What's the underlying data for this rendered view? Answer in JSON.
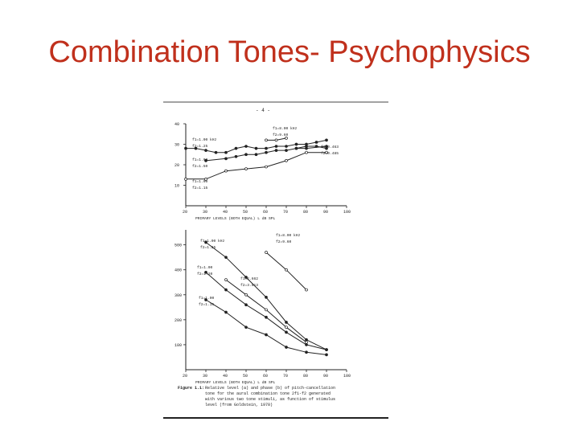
{
  "title": "Combination Tones- Psychophysics",
  "figure": {
    "page_marker": "- 4 -",
    "caption_label": "Figure 1.1:",
    "caption_lines": [
      "Relative level (a) and phase (b) of pitch-cancellation",
      "tone for the aural combination tone 2f1-f2 generated",
      "with various two tone stimuli, as function of stimulus",
      "level (from Goldstein, 1970)"
    ]
  },
  "chart_data": [
    {
      "type": "line",
      "panel": "a",
      "xlabel": "PRIMARY LEVELS (BOTH EQUAL) L dB SPL",
      "x_ticks": [
        20,
        30,
        40,
        50,
        60,
        70,
        80,
        90,
        100
      ],
      "y_ticks": [
        10,
        20,
        30,
        40
      ],
      "xlim": [
        20,
        100
      ],
      "ylim": [
        0,
        40
      ],
      "series": [
        {
          "name": "f1=1.00 kHz f2=1.25",
          "x": [
            20,
            25,
            30,
            35,
            40,
            45,
            50,
            55,
            60,
            65,
            70,
            75,
            80,
            85,
            90
          ],
          "y": [
            28,
            28,
            27,
            26,
            26,
            28,
            29,
            28,
            28,
            29,
            29,
            30,
            30,
            31,
            32
          ]
        },
        {
          "name": "f1=8.00 kHz f2=9.60",
          "x": [
            60,
            65,
            70
          ],
          "y": [
            32,
            32,
            33
          ]
        },
        {
          "name": "f1=1.00 f2=1.50",
          "x": [
            30,
            40,
            45,
            50,
            55,
            60,
            65,
            70,
            75,
            80,
            90
          ],
          "y": [
            22,
            23,
            24,
            25,
            25,
            26,
            27,
            27,
            28,
            28,
            29
          ]
        },
        {
          "name": "f1=1.00 f2=1.15",
          "x": [
            20,
            30,
            40,
            50,
            60,
            70,
            80,
            90
          ],
          "y": [
            13,
            13,
            17,
            18,
            19,
            22,
            26,
            26
          ]
        },
        {
          "name": "f1=0.463 f2=0.485",
          "x": [
            75,
            80,
            85,
            90
          ],
          "y": [
            28,
            29,
            29,
            28
          ]
        }
      ],
      "legend_labels": [
        "f1=1.00 kHz",
        "f2=1.25",
        "f1=1.00",
        "f2=1.50",
        "f1=1.00",
        "f2=1.15",
        "f1=8.00 kHz",
        "f2=9.60",
        "f1=0.463",
        "f2=0.485"
      ]
    },
    {
      "type": "line",
      "panel": "b",
      "xlabel": "PRIMARY LEVELS (BOTH EQUAL) L dB SPL",
      "x_ticks": [
        20,
        30,
        40,
        50,
        60,
        70,
        80,
        90,
        100
      ],
      "y_ticks": [
        100,
        200,
        300,
        400,
        500
      ],
      "xlim": [
        20,
        100
      ],
      "ylim": [
        0,
        560
      ],
      "series": [
        {
          "name": "f1=1.00 kHz f2=1.25",
          "x": [
            30,
            40,
            50,
            60,
            70,
            80,
            90
          ],
          "y": [
            510,
            450,
            370,
            290,
            190,
            120,
            80
          ]
        },
        {
          "name": "f1=8.00 kHz f2=9.60",
          "x": [
            60,
            70,
            80
          ],
          "y": [
            470,
            400,
            320
          ]
        },
        {
          "name": "f1=1.00 f2=1.20",
          "x": [
            30,
            40,
            50,
            60,
            70,
            80,
            90
          ],
          "y": [
            390,
            320,
            260,
            210,
            150,
            100,
            80
          ]
        },
        {
          "name": "f1=2.662 f2=3.013",
          "x": [
            40,
            50,
            60,
            70,
            80
          ],
          "y": [
            360,
            300,
            240,
            170,
            110
          ]
        },
        {
          "name": "f1=1.00 f2=1.15",
          "x": [
            30,
            40,
            50,
            60,
            70,
            80,
            90
          ],
          "y": [
            280,
            230,
            170,
            140,
            90,
            70,
            60
          ]
        }
      ],
      "legend_labels": [
        "f1=1.00 kHz",
        "f2=1.25",
        "f1=1.00",
        "f2=1.20",
        "f1=1.00",
        "f2=1.15",
        "f1=2.662",
        "f2=3.013",
        "f1=8.00 kHz",
        "f2=9.60"
      ]
    }
  ]
}
